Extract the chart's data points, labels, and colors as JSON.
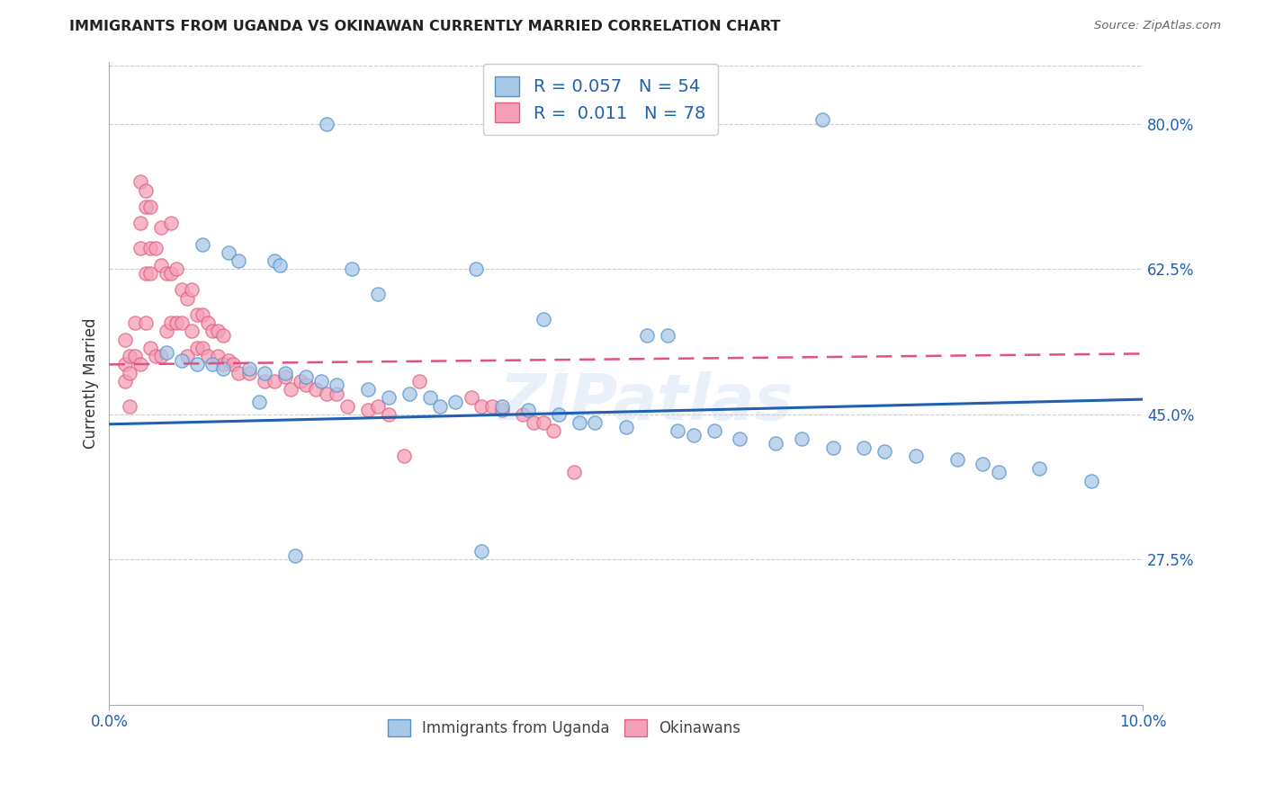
{
  "title": "IMMIGRANTS FROM UGANDA VS OKINAWAN CURRENTLY MARRIED CORRELATION CHART",
  "source": "Source: ZipAtlas.com",
  "ylabel": "Currently Married",
  "right_yticks": [
    0.275,
    0.45,
    0.625,
    0.8
  ],
  "right_yticklabels": [
    "27.5%",
    "45.0%",
    "62.5%",
    "80.0%"
  ],
  "xlim": [
    0.0,
    10.0
  ],
  "ylim": [
    0.1,
    0.875
  ],
  "color_blue": "#a8c8e8",
  "color_pink": "#f4a0b8",
  "color_blue_edge": "#5590c8",
  "color_pink_edge": "#e06080",
  "color_blue_line": "#2060b0",
  "color_pink_line": "#e05080",
  "color_text_blue": "#2060b0",
  "watermark": "ZIPatlas",
  "blue_scatter_x": [
    2.1,
    0.9,
    1.15,
    1.25,
    1.6,
    1.65,
    2.35,
    2.6,
    3.55,
    4.2,
    5.2,
    5.4,
    6.9,
    0.55,
    0.7,
    0.85,
    1.0,
    1.1,
    1.35,
    1.5,
    1.7,
    1.9,
    2.05,
    2.2,
    2.5,
    2.9,
    3.1,
    3.35,
    3.8,
    4.05,
    4.35,
    4.7,
    5.0,
    5.5,
    5.65,
    6.1,
    6.45,
    7.0,
    7.5,
    7.8,
    8.2,
    8.45,
    9.0,
    1.45,
    2.7,
    3.2,
    4.55,
    5.85,
    6.7,
    7.3,
    8.6,
    9.5,
    1.8,
    3.6
  ],
  "blue_scatter_y": [
    0.8,
    0.655,
    0.645,
    0.635,
    0.635,
    0.63,
    0.625,
    0.595,
    0.625,
    0.565,
    0.545,
    0.545,
    0.805,
    0.525,
    0.515,
    0.51,
    0.51,
    0.505,
    0.505,
    0.5,
    0.5,
    0.495,
    0.49,
    0.485,
    0.48,
    0.475,
    0.47,
    0.465,
    0.46,
    0.455,
    0.45,
    0.44,
    0.435,
    0.43,
    0.425,
    0.42,
    0.415,
    0.41,
    0.405,
    0.4,
    0.395,
    0.39,
    0.385,
    0.465,
    0.47,
    0.46,
    0.44,
    0.43,
    0.42,
    0.41,
    0.38,
    0.37,
    0.28,
    0.285
  ],
  "pink_scatter_x": [
    0.15,
    0.15,
    0.15,
    0.2,
    0.2,
    0.2,
    0.25,
    0.25,
    0.3,
    0.3,
    0.3,
    0.3,
    0.35,
    0.35,
    0.35,
    0.35,
    0.4,
    0.4,
    0.4,
    0.4,
    0.45,
    0.45,
    0.5,
    0.5,
    0.5,
    0.55,
    0.55,
    0.6,
    0.6,
    0.6,
    0.65,
    0.65,
    0.7,
    0.7,
    0.75,
    0.75,
    0.8,
    0.8,
    0.85,
    0.85,
    0.9,
    0.9,
    0.95,
    0.95,
    1.0,
    1.05,
    1.05,
    1.1,
    1.1,
    1.15,
    1.2,
    1.25,
    1.35,
    1.5,
    1.6,
    1.7,
    1.75,
    1.85,
    1.9,
    2.0,
    2.1,
    2.2,
    2.3,
    2.5,
    2.6,
    2.7,
    2.85,
    3.0,
    3.5,
    3.6,
    3.7,
    3.8,
    4.0,
    4.1,
    4.2,
    4.3,
    4.5
  ],
  "pink_scatter_y": [
    0.54,
    0.51,
    0.49,
    0.52,
    0.5,
    0.46,
    0.56,
    0.52,
    0.73,
    0.68,
    0.65,
    0.51,
    0.72,
    0.7,
    0.62,
    0.56,
    0.7,
    0.65,
    0.62,
    0.53,
    0.65,
    0.52,
    0.675,
    0.63,
    0.52,
    0.62,
    0.55,
    0.68,
    0.62,
    0.56,
    0.625,
    0.56,
    0.6,
    0.56,
    0.59,
    0.52,
    0.6,
    0.55,
    0.57,
    0.53,
    0.57,
    0.53,
    0.56,
    0.52,
    0.55,
    0.55,
    0.52,
    0.545,
    0.51,
    0.515,
    0.51,
    0.5,
    0.5,
    0.49,
    0.49,
    0.495,
    0.48,
    0.49,
    0.485,
    0.48,
    0.475,
    0.475,
    0.46,
    0.455,
    0.46,
    0.45,
    0.4,
    0.49,
    0.47,
    0.46,
    0.46,
    0.455,
    0.45,
    0.44,
    0.44,
    0.43,
    0.38
  ],
  "blue_trend": [
    0.0,
    10.0,
    0.438,
    0.468
  ],
  "pink_trend": [
    0.0,
    10.0,
    0.51,
    0.523
  ]
}
